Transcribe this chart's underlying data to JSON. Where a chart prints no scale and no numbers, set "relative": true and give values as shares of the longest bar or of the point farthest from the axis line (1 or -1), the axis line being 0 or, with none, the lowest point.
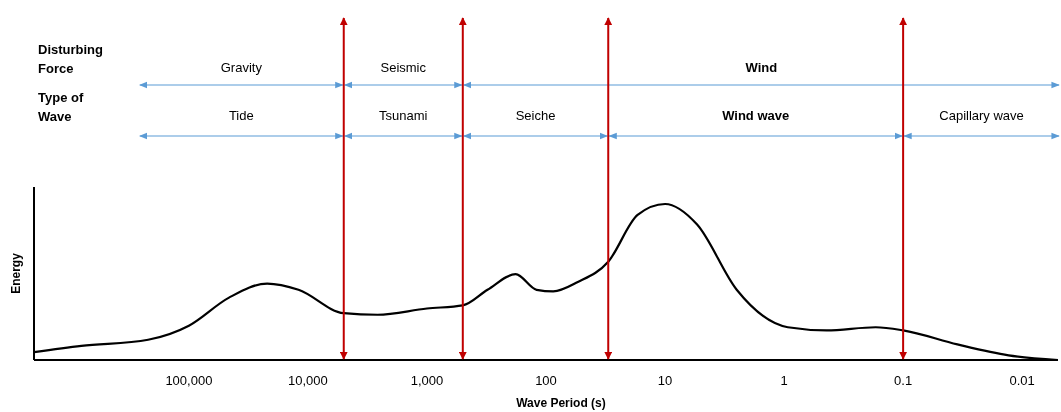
{
  "chart_data": {
    "type": "line",
    "relative": true,
    "log": "x",
    "xlabel": "Wave Period (s)",
    "ylabel": "Energy",
    "xlim": [
      2000000,
      0.005
    ],
    "xticks": [
      {
        "value": 100000,
        "label": "100,000"
      },
      {
        "value": 10000,
        "label": "10,000"
      },
      {
        "value": 1000,
        "label": "1,000"
      },
      100,
      10,
      1,
      0.1,
      0.01
    ],
    "x": [
      2000000,
      800000,
      220000,
      100000,
      46000,
      22000,
      12000,
      5000,
      2600,
      1000,
      500,
      310,
      180,
      120,
      87,
      54,
      30,
      17,
      10,
      5.4,
      2.5,
      0.93,
      0.44,
      0.17,
      0.1,
      0.035,
      0.013,
      0.005
    ],
    "series": [
      {
        "color": "#000000",
        "values": [
          0.05,
          0.09,
          0.13,
          0.22,
          0.4,
          0.49,
          0.45,
          0.3,
          0.29,
          0.33,
          0.35,
          0.45,
          0.55,
          0.45,
          0.44,
          0.5,
          0.63,
          0.93,
          1.0,
          0.87,
          0.45,
          0.21,
          0.19,
          0.21,
          0.19,
          0.1,
          0.03,
          0
        ]
      }
    ],
    "marker": "none",
    "line_style": "solid",
    "ref_lines": [
      {
        "axis": "x",
        "value": 5000,
        "color": "#c00000"
      },
      {
        "axis": "x",
        "value": 500,
        "color": "#c00000"
      },
      {
        "axis": "x",
        "value": 30,
        "color": "#c00000"
      },
      {
        "axis": "x",
        "value": 0.1,
        "color": "#c00000"
      }
    ],
    "annotations": [
      "Disturbing Force",
      "Gravity",
      "Seismic",
      "Wind",
      "Type of Wave",
      "Tide",
      "Tsunami",
      "Seiche",
      "Wind wave",
      "Capillary wave"
    ]
  }
}
